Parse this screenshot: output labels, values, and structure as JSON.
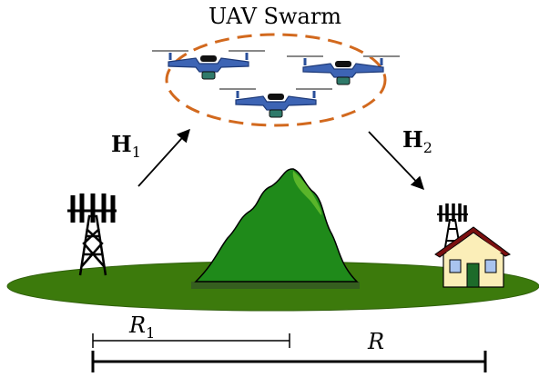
{
  "title": "UAV Swarm",
  "links": [
    {
      "main": "H",
      "sub": "1"
    },
    {
      "main": "H",
      "sub": "2"
    }
  ],
  "distances": [
    {
      "main": "R",
      "sub": "1"
    },
    {
      "main": "R"
    }
  ]
}
